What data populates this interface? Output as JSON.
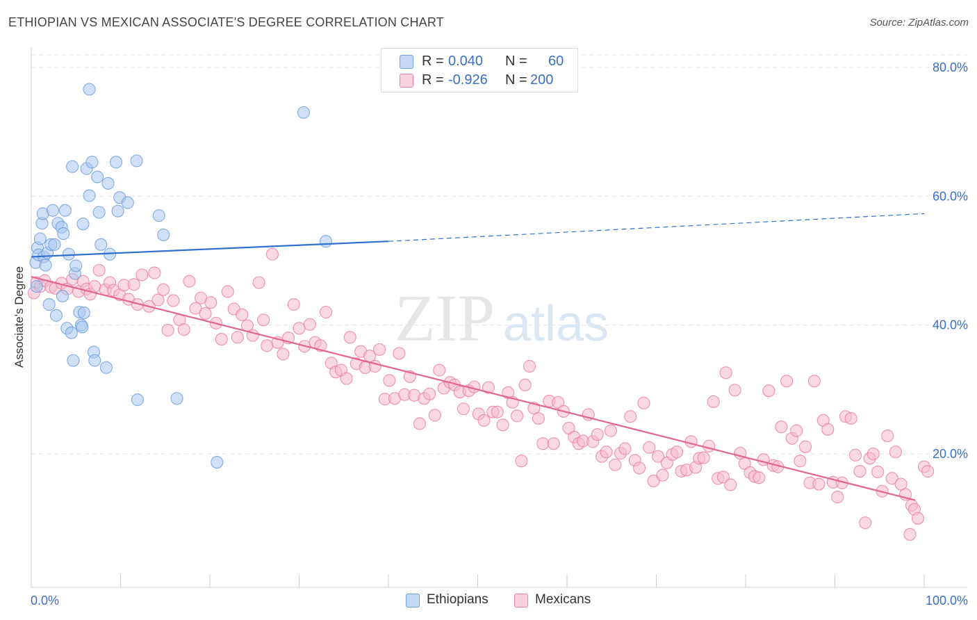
{
  "title": "ETHIOPIAN VS MEXICAN ASSOCIATE'S DEGREE CORRELATION CHART",
  "source": "Source: ZipAtlas.com",
  "watermark": {
    "zip": "ZIP",
    "atlas": "atlas"
  },
  "legend": {
    "rows": [
      {
        "r_label": "R =",
        "r_value": "0.040",
        "n_label": "N =",
        "n_value": "60",
        "color": "#a9c6ef",
        "stroke": "#6f9fdc"
      },
      {
        "r_label": "R =",
        "r_value": "-0.926",
        "n_label": "N =",
        "n_value": "200",
        "color": "#f6b9cd",
        "stroke": "#ea7fa4"
      }
    ]
  },
  "bottom_legend": [
    {
      "label": "Ethiopians",
      "color": "#a9c6ef",
      "stroke": "#6f9fdc"
    },
    {
      "label": "Mexicans",
      "color": "#f6b9cd",
      "stroke": "#ea7fa4"
    }
  ],
  "chart_data": {
    "type": "scatter",
    "title": "ETHIOPIAN VS MEXICAN ASSOCIATE'S DEGREE CORRELATION CHART",
    "xlabel": "",
    "ylabel": "Associate's Degree",
    "xlim": [
      0,
      100
    ],
    "ylim": [
      0,
      80
    ],
    "x_tick_labels": [
      "0.0%",
      "100.0%"
    ],
    "y_ticks": [
      20,
      40,
      60,
      80
    ],
    "y_tick_labels": [
      "20.0%",
      "40.0%",
      "60.0%",
      "80.0%"
    ],
    "grid": true,
    "series": [
      {
        "name": "Ethiopians",
        "color": "#6f9fdc",
        "fill": "#a9c6ef",
        "trend": {
          "x0": 0,
          "y0": 50.6,
          "x1": 40,
          "y1": 53.0,
          "dashed_to_x": 100,
          "dashed_to_y": 57.3
        },
        "points": [
          [
            0.5,
            49.7
          ],
          [
            0.6,
            46.0
          ],
          [
            0.7,
            52.0
          ],
          [
            0.8,
            50.9
          ],
          [
            1.0,
            53.4
          ],
          [
            1.2,
            55.8
          ],
          [
            1.3,
            57.3
          ],
          [
            1.4,
            50.6
          ],
          [
            1.6,
            49.3
          ],
          [
            1.8,
            51.2
          ],
          [
            2.0,
            43.2
          ],
          [
            2.2,
            52.5
          ],
          [
            2.4,
            57.8
          ],
          [
            2.6,
            52.5
          ],
          [
            2.8,
            41.5
          ],
          [
            3.0,
            55.8
          ],
          [
            3.4,
            55.2
          ],
          [
            3.5,
            44.5
          ],
          [
            3.6,
            54.2
          ],
          [
            3.8,
            57.8
          ],
          [
            4.0,
            39.5
          ],
          [
            4.2,
            51.0
          ],
          [
            4.5,
            38.8
          ],
          [
            4.7,
            34.5
          ],
          [
            4.6,
            64.6
          ],
          [
            4.9,
            48.0
          ],
          [
            5.0,
            49.2
          ],
          [
            5.4,
            42.0
          ],
          [
            5.6,
            40.0
          ],
          [
            5.7,
            39.7
          ],
          [
            5.9,
            41.9
          ],
          [
            5.8,
            55.7
          ],
          [
            6.2,
            64.3
          ],
          [
            6.5,
            76.6
          ],
          [
            6.5,
            60.1
          ],
          [
            6.8,
            65.3
          ],
          [
            7.0,
            35.8
          ],
          [
            7.1,
            34.5
          ],
          [
            7.4,
            63.0
          ],
          [
            7.6,
            57.5
          ],
          [
            7.8,
            52.5
          ],
          [
            8.4,
            33.4
          ],
          [
            8.6,
            62.0
          ],
          [
            8.8,
            51.0
          ],
          [
            9.5,
            65.3
          ],
          [
            9.7,
            57.7
          ],
          [
            9.9,
            59.8
          ],
          [
            10.8,
            59.0
          ],
          [
            11.8,
            65.5
          ],
          [
            11.9,
            28.4
          ],
          [
            14.3,
            57.0
          ],
          [
            14.8,
            54.0
          ],
          [
            16.3,
            28.6
          ],
          [
            20.8,
            18.7
          ],
          [
            30.5,
            73.0
          ],
          [
            33.0,
            53.0
          ]
        ]
      },
      {
        "name": "Mexicans",
        "color": "#ea7fa4",
        "fill": "#f6b9cd",
        "trend": {
          "x0": 0,
          "y0": 47.5,
          "x1": 99,
          "y1": 12.8
        },
        "points": [
          [
            0.3,
            45.0
          ],
          [
            0.6,
            46.6
          ],
          [
            1.0,
            46.0
          ],
          [
            1.5,
            46.9
          ],
          [
            2.2,
            45.9
          ],
          [
            2.7,
            45.7
          ],
          [
            3.4,
            46.5
          ],
          [
            4.0,
            45.6
          ],
          [
            4.6,
            47.1
          ],
          [
            5.3,
            45.2
          ],
          [
            5.8,
            46.8
          ],
          [
            6.2,
            45.6
          ],
          [
            6.6,
            44.8
          ],
          [
            7.1,
            46.0
          ],
          [
            7.6,
            48.5
          ],
          [
            8.3,
            45.5
          ],
          [
            8.8,
            46.6
          ],
          [
            9.2,
            45.4
          ],
          [
            9.9,
            44.7
          ],
          [
            10.4,
            46.2
          ],
          [
            10.9,
            44.0
          ],
          [
            11.5,
            46.3
          ],
          [
            11.9,
            43.2
          ],
          [
            12.4,
            47.8
          ],
          [
            13.2,
            42.9
          ],
          [
            13.8,
            48.1
          ],
          [
            14.2,
            43.9
          ],
          [
            14.8,
            45.5
          ],
          [
            15.3,
            39.2
          ],
          [
            15.9,
            43.8
          ],
          [
            16.6,
            40.8
          ],
          [
            17.1,
            39.3
          ],
          [
            17.7,
            46.8
          ],
          [
            18.4,
            42.6
          ],
          [
            19.0,
            44.2
          ],
          [
            19.5,
            41.8
          ],
          [
            20.1,
            43.5
          ],
          [
            20.7,
            40.3
          ],
          [
            21.3,
            37.8
          ],
          [
            22.0,
            45.2
          ],
          [
            22.7,
            42.5
          ],
          [
            23.1,
            38.1
          ],
          [
            23.6,
            41.6
          ],
          [
            24.2,
            39.9
          ],
          [
            24.8,
            38.4
          ],
          [
            25.5,
            46.6
          ],
          [
            26.0,
            40.8
          ],
          [
            26.4,
            36.8
          ],
          [
            27.0,
            51.0
          ],
          [
            27.6,
            37.3
          ],
          [
            28.2,
            35.5
          ],
          [
            28.8,
            38.0
          ],
          [
            29.4,
            43.2
          ],
          [
            30.0,
            39.5
          ],
          [
            30.6,
            36.7
          ],
          [
            31.2,
            40.1
          ],
          [
            31.8,
            37.3
          ],
          [
            32.4,
            36.8
          ],
          [
            33.0,
            42.0
          ],
          [
            33.6,
            34.1
          ],
          [
            34.1,
            32.7
          ],
          [
            34.7,
            33.0
          ],
          [
            35.3,
            31.7
          ],
          [
            35.7,
            38.1
          ],
          [
            36.4,
            34.0
          ],
          [
            36.9,
            35.9
          ],
          [
            37.4,
            33.4
          ],
          [
            37.9,
            35.2
          ],
          [
            38.5,
            33.6
          ],
          [
            39.0,
            36.2
          ],
          [
            39.6,
            28.5
          ],
          [
            40.1,
            31.4
          ],
          [
            40.7,
            28.6
          ],
          [
            41.2,
            35.6
          ],
          [
            41.8,
            29.2
          ],
          [
            42.4,
            32.0
          ],
          [
            42.9,
            29.1
          ],
          [
            43.5,
            24.7
          ],
          [
            44.0,
            28.6
          ],
          [
            44.6,
            29.3
          ],
          [
            45.2,
            26.0
          ],
          [
            45.7,
            33.0
          ],
          [
            46.2,
            30.2
          ],
          [
            46.9,
            31.1
          ],
          [
            47.4,
            30.7
          ],
          [
            48.0,
            29.6
          ],
          [
            48.4,
            27.0
          ],
          [
            49.0,
            29.8
          ],
          [
            49.6,
            30.4
          ],
          [
            50.1,
            26.2
          ],
          [
            50.7,
            25.2
          ],
          [
            51.2,
            30.3
          ],
          [
            51.7,
            26.5
          ],
          [
            52.2,
            26.5
          ],
          [
            52.8,
            24.5
          ],
          [
            53.4,
            29.5
          ],
          [
            53.9,
            28.0
          ],
          [
            54.4,
            25.9
          ],
          [
            54.9,
            18.9
          ],
          [
            55.3,
            30.7
          ],
          [
            55.8,
            33.6
          ],
          [
            56.3,
            27.1
          ],
          [
            56.8,
            25.5
          ],
          [
            57.3,
            21.6
          ],
          [
            58.0,
            28.2
          ],
          [
            58.5,
            21.6
          ],
          [
            59.0,
            28.0
          ],
          [
            59.6,
            26.6
          ],
          [
            60.2,
            24.0
          ],
          [
            60.8,
            22.6
          ],
          [
            61.3,
            21.6
          ],
          [
            61.8,
            22.0
          ],
          [
            62.4,
            26.1
          ],
          [
            62.9,
            21.9
          ],
          [
            63.4,
            23.0
          ],
          [
            63.9,
            19.6
          ],
          [
            64.4,
            20.3
          ],
          [
            64.9,
            23.6
          ],
          [
            65.4,
            18.3
          ],
          [
            66.0,
            20.1
          ],
          [
            66.5,
            20.8
          ],
          [
            67.1,
            25.8
          ],
          [
            67.6,
            19.0
          ],
          [
            68.1,
            17.8
          ],
          [
            68.6,
            27.9
          ],
          [
            69.2,
            21.0
          ],
          [
            69.7,
            15.8
          ],
          [
            70.2,
            19.6
          ],
          [
            70.7,
            16.7
          ],
          [
            71.2,
            18.6
          ],
          [
            71.8,
            19.9
          ],
          [
            72.3,
            20.3
          ],
          [
            72.8,
            17.3
          ],
          [
            73.4,
            17.5
          ],
          [
            73.9,
            21.9
          ],
          [
            74.4,
            17.9
          ],
          [
            74.8,
            19.3
          ],
          [
            75.3,
            19.4
          ],
          [
            75.9,
            21.2
          ],
          [
            76.4,
            28.1
          ],
          [
            76.9,
            16.2
          ],
          [
            77.5,
            16.4
          ],
          [
            77.8,
            32.6
          ],
          [
            78.3,
            15.2
          ],
          [
            78.8,
            29.9
          ],
          [
            79.4,
            20.1
          ],
          [
            79.9,
            18.5
          ],
          [
            80.5,
            17.1
          ],
          [
            81.0,
            16.5
          ],
          [
            81.5,
            16.3
          ],
          [
            82.0,
            19.1
          ],
          [
            82.6,
            29.8
          ],
          [
            83.1,
            18.2
          ],
          [
            83.6,
            18.0
          ],
          [
            84.0,
            24.2
          ],
          [
            84.6,
            31.3
          ],
          [
            85.2,
            22.4
          ],
          [
            85.7,
            23.6
          ],
          [
            86.1,
            18.9
          ],
          [
            86.7,
            21.1
          ],
          [
            87.2,
            15.5
          ],
          [
            87.7,
            31.3
          ],
          [
            88.2,
            15.3
          ],
          [
            88.7,
            25.2
          ],
          [
            89.2,
            23.8
          ],
          [
            89.8,
            15.6
          ],
          [
            90.3,
            13.3
          ],
          [
            90.8,
            15.5
          ],
          [
            91.2,
            25.8
          ],
          [
            91.8,
            25.5
          ],
          [
            92.3,
            19.8
          ],
          [
            92.8,
            17.3
          ],
          [
            93.4,
            9.3
          ],
          [
            93.9,
            19.3
          ],
          [
            94.3,
            20.0
          ],
          [
            94.8,
            17.2
          ],
          [
            95.3,
            14.2
          ],
          [
            95.9,
            22.8
          ],
          [
            96.4,
            16.2
          ],
          [
            96.8,
            20.3
          ],
          [
            97.4,
            15.3
          ],
          [
            97.9,
            13.7
          ],
          [
            98.4,
            7.5
          ],
          [
            98.6,
            12.0
          ],
          [
            98.9,
            11.4
          ],
          [
            99.3,
            10.0
          ],
          [
            100.0,
            18.0
          ],
          [
            100.4,
            17.3
          ]
        ]
      }
    ]
  }
}
